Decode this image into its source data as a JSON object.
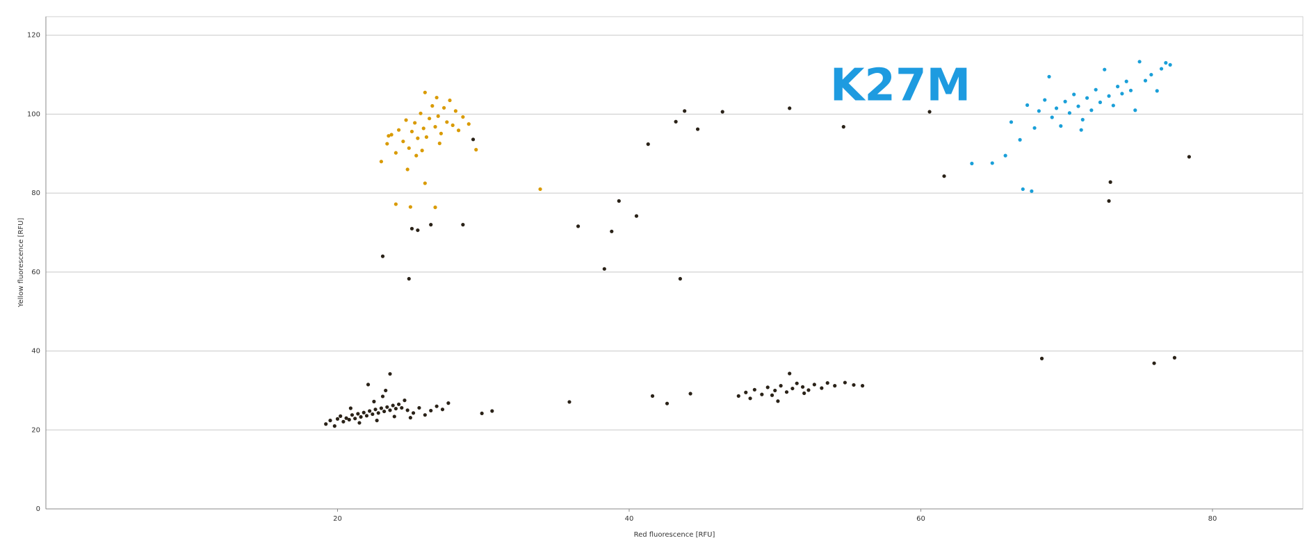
{
  "chart_data": {
    "type": "scatter",
    "annotation": "K27M",
    "x_label": "Red fluorescence [RFU]",
    "y_label": "Yellow fluorescence [RFU]",
    "xlim": [
      0,
      86.2
    ],
    "ylim": [
      0,
      124.7
    ],
    "xticks": [
      20,
      40,
      60,
      80
    ],
    "yticks": [
      0,
      20,
      40,
      60,
      80,
      100,
      120
    ],
    "grid": true,
    "series": [
      {
        "color": "#2a2218",
        "x": [
          23.1,
          24.9,
          25.1,
          25.5,
          26.4,
          28.6,
          36.5,
          38.8,
          38.3,
          39.3,
          40.5,
          41.3,
          43.2,
          43.8,
          44.7,
          46.4,
          43.5,
          51.0,
          54.7,
          60.6,
          61.6,
          73.0,
          72.9,
          78.4,
          68.3,
          76.0,
          77.4,
          35.9,
          41.6,
          42.6,
          44.2,
          30.6,
          29.9,
          29.3,
          47.5,
          48.0,
          48.6,
          49.1,
          49.5,
          50.0,
          50.4,
          50.8,
          51.2,
          51.5,
          51.9,
          52.3,
          52.7,
          53.2,
          53.6,
          54.1,
          54.8,
          55.4,
          56.0,
          48.3,
          49.8,
          51.0,
          52.0,
          50.2,
          19.2,
          19.5,
          19.8,
          20.0,
          20.2,
          20.4,
          20.6,
          20.8,
          21.0,
          21.2,
          21.4,
          21.6,
          21.8,
          22.0,
          22.2,
          22.4,
          22.6,
          22.8,
          23.0,
          23.2,
          23.4,
          23.6,
          23.8,
          24.0,
          24.2,
          24.4,
          22.5,
          23.1,
          23.3,
          23.6,
          22.1,
          24.8,
          25.2,
          25.6,
          26.0,
          26.4,
          26.8,
          27.2,
          27.6,
          25.0,
          21.5,
          20.9,
          22.7,
          23.9,
          24.6
        ],
        "values": [
          64.0,
          58.3,
          71.0,
          70.6,
          72.0,
          72.0,
          71.6,
          70.3,
          60.8,
          78.0,
          74.2,
          92.4,
          98.1,
          100.8,
          96.2,
          100.6,
          58.3,
          101.5,
          96.8,
          100.6,
          84.3,
          82.8,
          78.0,
          89.2,
          38.1,
          36.9,
          38.3,
          27.1,
          28.6,
          26.7,
          29.2,
          24.8,
          24.2,
          93.6,
          28.6,
          29.5,
          30.2,
          29.0,
          30.8,
          30.0,
          31.2,
          29.6,
          30.5,
          31.8,
          30.9,
          30.1,
          31.5,
          30.6,
          31.9,
          31.2,
          32.0,
          31.4,
          31.2,
          28.0,
          28.8,
          34.3,
          29.3,
          27.3,
          21.5,
          22.4,
          21.0,
          22.8,
          23.5,
          22.1,
          23.0,
          22.6,
          23.8,
          22.9,
          24.1,
          23.3,
          24.4,
          23.6,
          24.8,
          24.0,
          25.2,
          24.3,
          25.5,
          24.7,
          25.8,
          25.0,
          26.2,
          25.4,
          26.5,
          25.6,
          27.2,
          28.5,
          30.0,
          34.2,
          31.5,
          25.0,
          24.3,
          25.6,
          23.8,
          24.9,
          26.0,
          25.2,
          26.8,
          23.1,
          21.8,
          25.5,
          22.4,
          23.4,
          27.5
        ]
      },
      {
        "color": "#d99a00",
        "x": [
          23.0,
          23.4,
          23.7,
          24.0,
          24.2,
          24.5,
          24.7,
          24.9,
          25.1,
          25.3,
          25.5,
          25.7,
          25.9,
          26.1,
          26.3,
          26.5,
          26.7,
          26.9,
          27.1,
          27.3,
          27.5,
          27.7,
          27.9,
          28.1,
          28.3,
          28.6,
          29.0,
          29.5,
          24.8,
          25.4,
          26.0,
          26.8,
          24.0,
          25.0,
          26.0,
          26.7,
          33.9,
          23.5,
          25.8,
          27.0
        ],
        "values": [
          88.0,
          92.5,
          94.8,
          90.2,
          96.0,
          93.1,
          98.5,
          91.4,
          95.6,
          97.8,
          93.9,
          100.2,
          96.4,
          94.2,
          98.9,
          102.1,
          96.8,
          99.5,
          95.1,
          101.6,
          98.0,
          103.5,
          97.2,
          100.8,
          95.9,
          99.3,
          97.5,
          91.0,
          86.0,
          89.5,
          105.5,
          104.2,
          77.2,
          76.5,
          82.5,
          76.4,
          81.0,
          94.5,
          90.8,
          92.6
        ]
      },
      {
        "color": "#1a9fd8",
        "x": [
          63.5,
          64.9,
          65.8,
          66.2,
          66.8,
          67.0,
          67.6,
          67.3,
          67.8,
          68.1,
          68.5,
          68.8,
          69.0,
          69.3,
          69.6,
          69.9,
          70.2,
          70.5,
          70.8,
          71.1,
          71.4,
          71.7,
          72.0,
          72.3,
          72.6,
          72.9,
          73.2,
          73.5,
          73.8,
          74.1,
          74.4,
          74.7,
          75.0,
          75.4,
          75.8,
          76.2,
          76.5,
          76.8,
          77.1,
          71.0
        ],
        "values": [
          87.5,
          87.6,
          89.5,
          98.0,
          93.5,
          81.0,
          80.5,
          102.3,
          96.5,
          100.8,
          103.6,
          109.5,
          99.2,
          101.5,
          97.0,
          103.2,
          100.3,
          105.0,
          102.0,
          98.6,
          104.1,
          101.0,
          106.2,
          103.0,
          111.3,
          104.6,
          102.2,
          107.0,
          105.2,
          108.3,
          106.0,
          101.0,
          113.3,
          108.5,
          110.0,
          105.9,
          111.5,
          113.0,
          112.5,
          96.0
        ]
      }
    ]
  }
}
